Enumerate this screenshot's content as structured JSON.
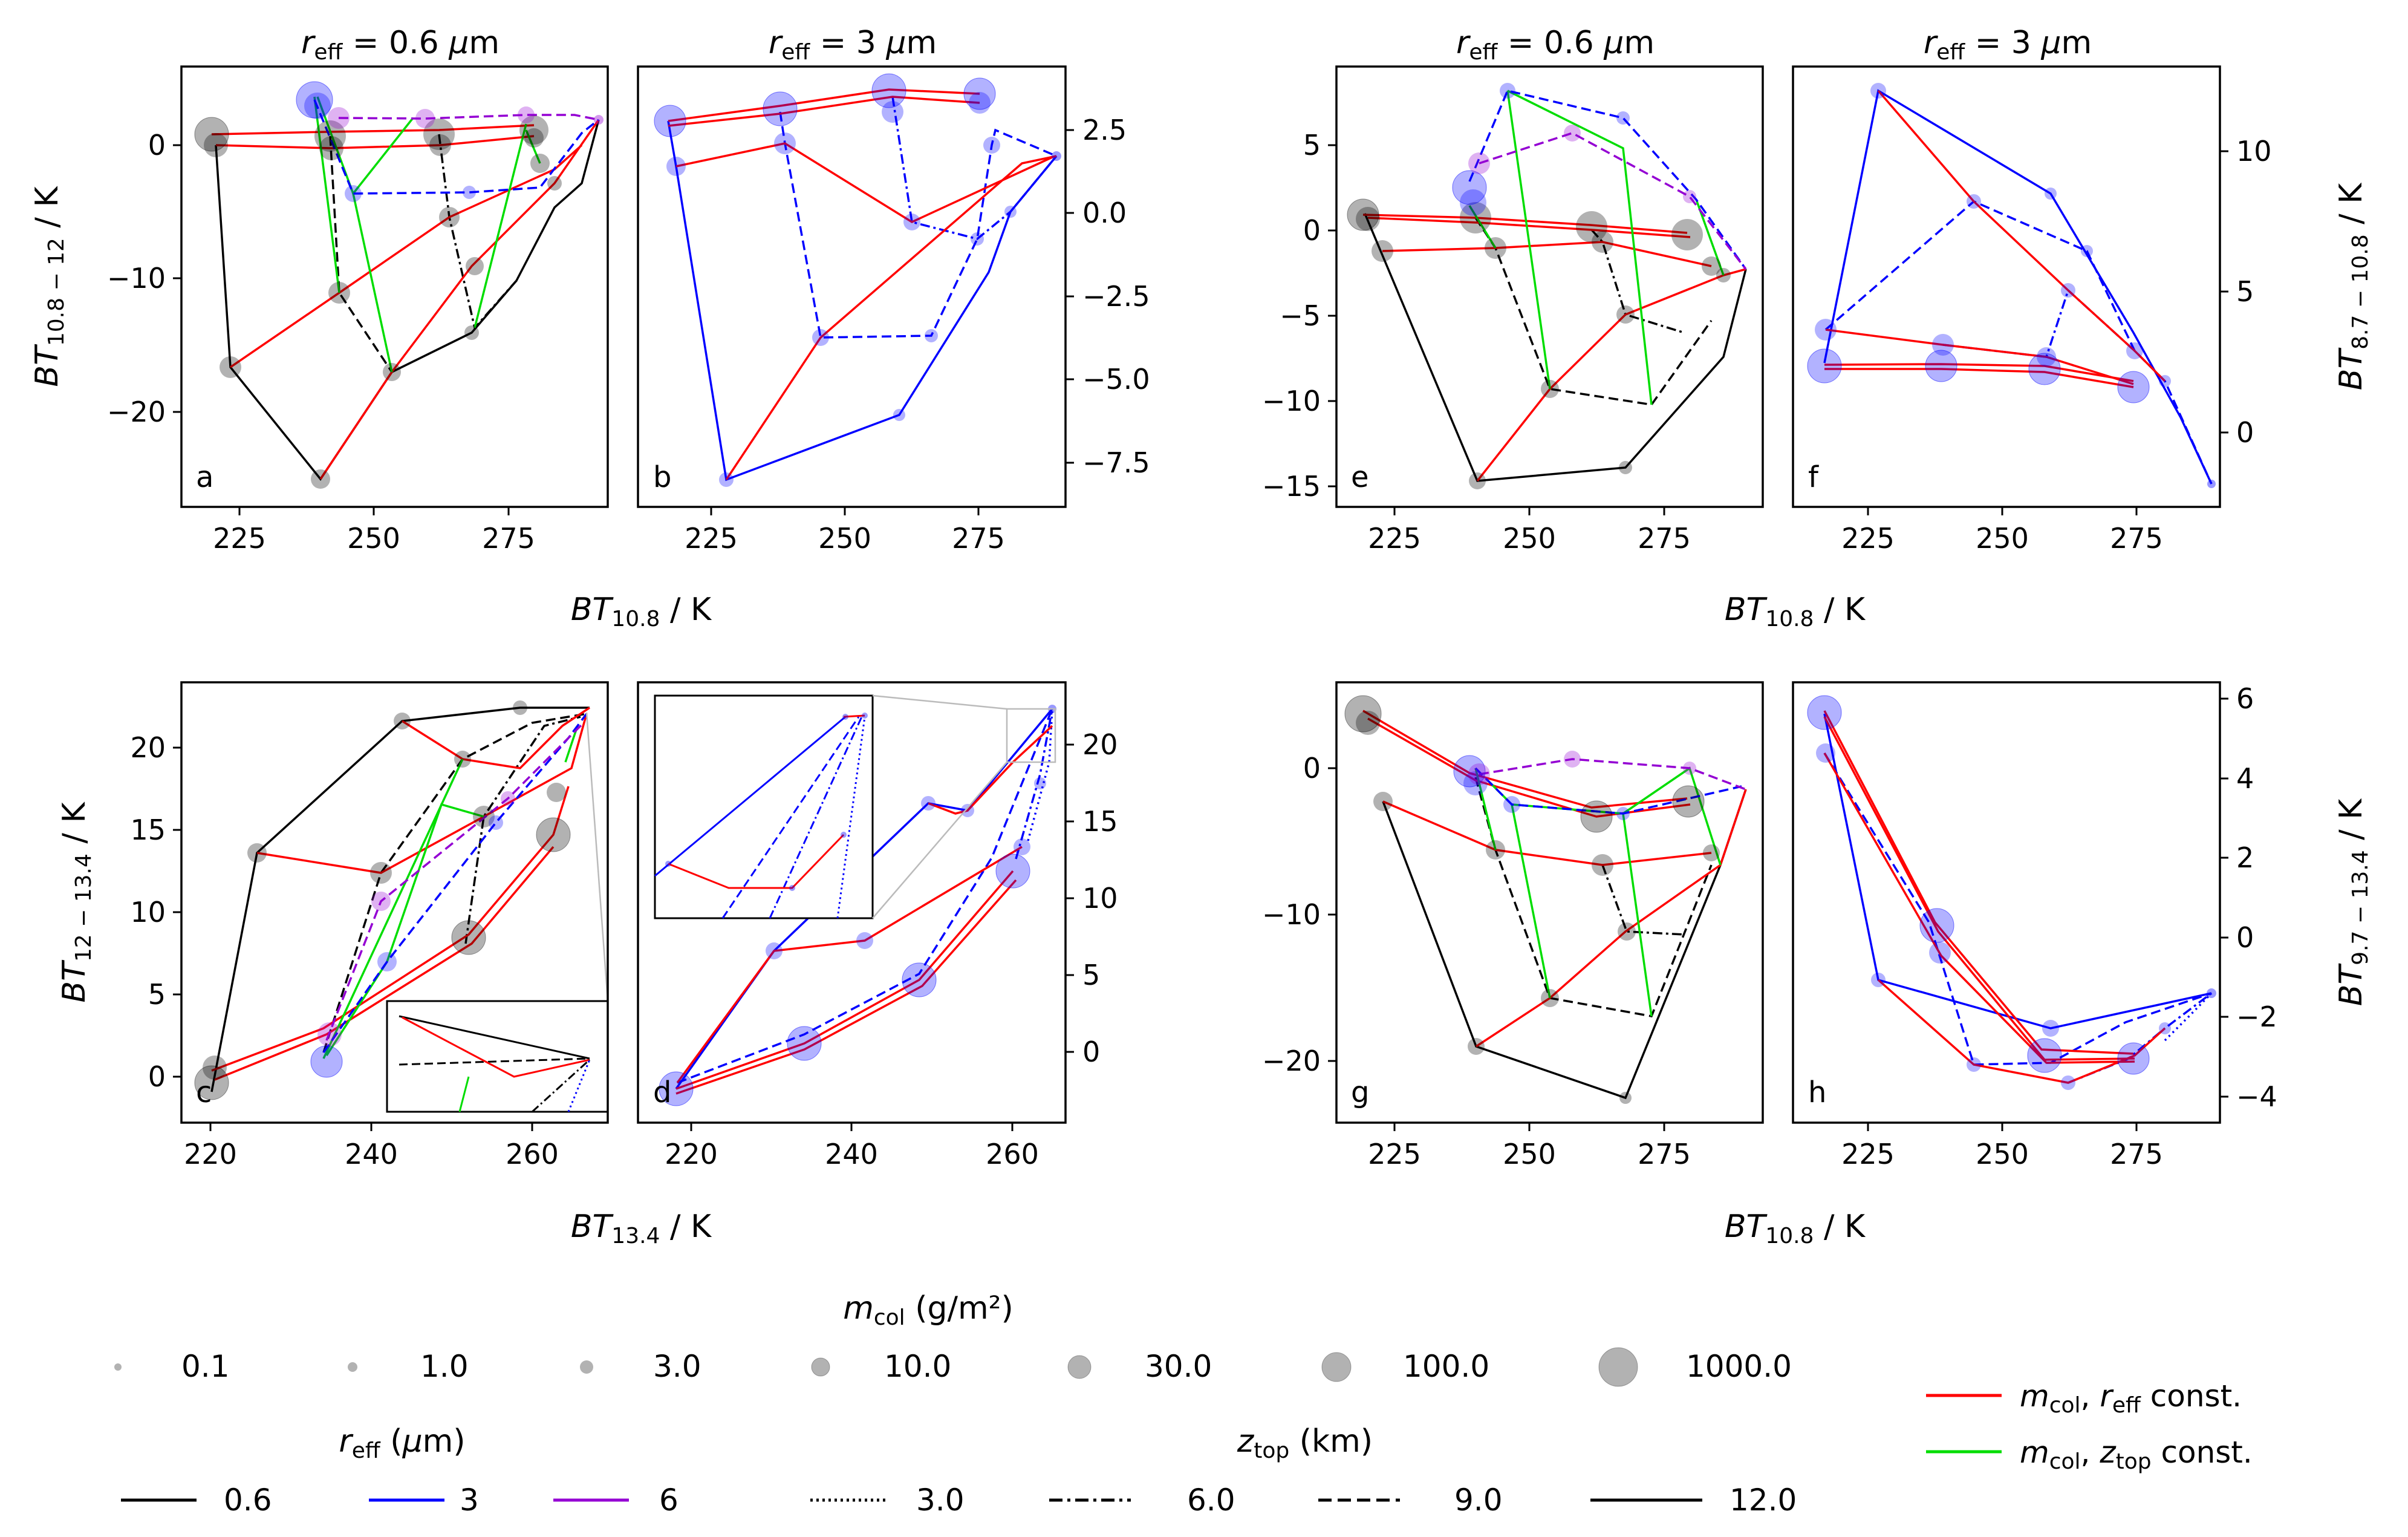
{
  "panels": {
    "a": {
      "label": "a",
      "title": "r_eff = 0.6 μm",
      "xticks": [
        "225",
        "250",
        "275"
      ],
      "yticks": [
        "0",
        "−10",
        "−20"
      ]
    },
    "b": {
      "label": "b",
      "title": "r_eff = 3 μm",
      "xticks": [
        "225",
        "250",
        "275"
      ],
      "yticks": [
        "2.5",
        "0.0",
        "−2.5",
        "−5.0",
        "−7.5"
      ]
    },
    "c": {
      "label": "c",
      "xticks": [
        "220",
        "240",
        "260"
      ],
      "yticks": [
        "0",
        "5",
        "10",
        "15",
        "20"
      ]
    },
    "d": {
      "label": "d",
      "xticks": [
        "220",
        "240",
        "260"
      ],
      "yticks": [
        "0",
        "5",
        "10",
        "15",
        "20"
      ]
    },
    "e": {
      "label": "e",
      "title": "r_eff = 0.6 μm",
      "xticks": [
        "225",
        "250",
        "275"
      ],
      "yticks": [
        "5",
        "0",
        "−5",
        "−10",
        "−15"
      ]
    },
    "f": {
      "label": "f",
      "title": "r_eff = 3 μm",
      "xticks": [
        "225",
        "250",
        "275"
      ],
      "yticks": [
        "10",
        "5",
        "0"
      ]
    },
    "g": {
      "label": "g",
      "xticks": [
        "225",
        "250",
        "275"
      ],
      "yticks": [
        "0",
        "−10",
        "−20"
      ]
    },
    "h": {
      "label": "h",
      "xticks": [
        "225",
        "250",
        "275"
      ],
      "yticks": [
        "6",
        "4",
        "2",
        "0",
        "−2",
        "−4"
      ]
    }
  },
  "axis_labels": {
    "x_top_left": "BT_10.8 / K",
    "x_top_right": "BT_10.8 / K",
    "x_bottom_left": "BT_13.4 / K",
    "x_bottom_right": "BT_10.8 / K",
    "y_a": "BT_10.8 − 12 / K",
    "y_c": "BT_12 − 13.4 / K",
    "y_f": "BT_8.7 − 10.8 / K",
    "y_h": "BT_9.7 − 13.4 / K"
  },
  "legend": {
    "mcol_title": "m_col (g/m²)",
    "mcol_sizes": [
      "0.1",
      "1.0",
      "3.0",
      "10.0",
      "30.0",
      "100.0",
      "1000.0"
    ],
    "reff_title": "r_eff (μm)",
    "reff_entries": [
      {
        "label": "0.6",
        "color": "#000000"
      },
      {
        "label": "3",
        "color": "#0000ff"
      },
      {
        "label": "6",
        "color": "#9400d3"
      }
    ],
    "ztop_title": "z_top (km)",
    "ztop_entries": [
      {
        "label": "3.0",
        "style": "dotted"
      },
      {
        "label": "6.0",
        "style": "dashdot"
      },
      {
        "label": "9.0",
        "style": "dashed"
      },
      {
        "label": "12.0",
        "style": "solid"
      }
    ],
    "const_entries": [
      {
        "label": "m_col, r_eff const.",
        "color": "#ff0000"
      },
      {
        "label": "m_col, z_top const.",
        "color": "#00dd00"
      }
    ]
  },
  "colors": {
    "reff_0.6": "#000000",
    "reff_3": "#0000ff",
    "reff_6": "#9400d3",
    "const_reff": "#ff0000",
    "const_ztop": "#00dd00"
  },
  "chart_data": [
    {
      "panel": "a",
      "type": "scatter",
      "xlim": [
        212,
        293
      ],
      "ylim": [
        -26.5,
        6
      ],
      "xlabel": "BT_10.8 / K",
      "ylabel": "BT_10.8 − 12 / K",
      "series": [
        {
          "name": "0.6",
          "color": "#000000",
          "x": [
            239,
            253,
            268,
            277,
            282,
            286,
            289,
            290
          ],
          "y": [
            -25,
            -17,
            -14,
            -10.5,
            -7,
            -4,
            -1.5,
            1.5
          ]
        },
        {
          "name": "3",
          "color": "#0000ff",
          "x": [
            240,
            244,
            266,
            283,
            287,
            290
          ],
          "y": [
            2.5,
            -3.8,
            -3.7,
            -3.6,
            0,
            1.5
          ]
        },
        {
          "name": "6",
          "color": "#9400d3",
          "x": [
            243,
            259,
            278,
            285,
            290
          ],
          "y": [
            1.7,
            1.7,
            1.9,
            2,
            1.7
          ]
        }
      ]
    },
    {
      "panel": "b",
      "type": "scatter",
      "xlim": [
        214,
        293
      ],
      "ylim": [
        -8.8,
        4.2
      ],
      "xlabel": "BT_10.8 / K",
      "ylabel": "",
      "series": [
        {
          "name": "3",
          "color": "#0000ff",
          "x": [
            217,
            229,
            260,
            277,
            282,
            288,
            290
          ],
          "y": [
            2.8,
            -8.1,
            -6,
            -3.5,
            -0.5,
            1.2,
            1.8
          ]
        },
        {
          "name": "3 (m_col, r_eff const.)",
          "color": "#ff0000",
          "x": [
            217,
            238,
            260,
            276
          ],
          "y": [
            2.5,
            3.0,
            3.4,
            3.3
          ]
        }
      ]
    },
    {
      "panel": "c",
      "type": "scatter",
      "xlim": [
        218,
        270
      ],
      "ylim": [
        -3,
        24
      ],
      "xlabel": "BT_13.4 / K",
      "ylabel": "BT_12 − 13.4 / K",
      "series": [
        {
          "name": "0.6",
          "color": "#000000",
          "x": [
            220,
            226,
            244,
            258,
            266
          ],
          "y": [
            0,
            13.6,
            21.5,
            22.3,
            22.3
          ]
        },
        {
          "name": "3",
          "color": "#0000ff",
          "x": [
            234,
            242,
            252,
            261,
            266
          ],
          "y": [
            1,
            7,
            13.5,
            19,
            22
          ]
        },
        {
          "name": "6",
          "color": "#9400d3",
          "x": [
            236,
            247,
            258,
            265
          ],
          "y": [
            2.2,
            10.6,
            16,
            21
          ]
        }
      ]
    },
    {
      "panel": "d",
      "type": "scatter",
      "xlim": [
        215,
        268
      ],
      "ylim": [
        -3.5,
        23
      ],
      "xlabel": "BT_13.4 / K",
      "ylabel": "",
      "series": [
        {
          "name": "3",
          "color": "#0000ff",
          "x": [
            218,
            230,
            250,
            257,
            261,
            266
          ],
          "y": [
            -2,
            7.5,
            16.5,
            15.5,
            20,
            22
          ]
        },
        {
          "name": "3 (m_col, r_eff const.)",
          "color": "#ff0000",
          "x": [
            218,
            234,
            249,
            261
          ],
          "y": [
            -2.2,
            2.5,
            6.5,
            12.8
          ]
        }
      ]
    },
    {
      "panel": "e",
      "type": "scatter",
      "xlim": [
        215,
        295
      ],
      "ylim": [
        -16,
        9
      ],
      "xlabel": "BT_10.8 / K",
      "ylabel": "",
      "series": [
        {
          "name": "0.6",
          "color": "#000000",
          "x": [
            239,
            267,
            280,
            286,
            290
          ],
          "y": [
            -14.6,
            -14,
            -9,
            -5,
            -2.5
          ]
        },
        {
          "name": "3",
          "color": "#0000ff",
          "x": [
            246,
            266,
            285,
            290
          ],
          "y": [
            8,
            6.4,
            1,
            -2.5
          ]
        },
        {
          "name": "6",
          "color": "#9400d3",
          "x": [
            243,
            259,
            277,
            290
          ],
          "y": [
            4,
            5.5,
            2,
            -2.5
          ]
        }
      ]
    },
    {
      "panel": "f",
      "type": "scatter",
      "xlim": [
        213,
        293
      ],
      "ylim": [
        -2.5,
        13.2
      ],
      "xlabel": "BT_10.8 / K",
      "ylabel": "BT_8.7 − 10.8 / K",
      "series": [
        {
          "name": "3",
          "color": "#0000ff",
          "x": [
            217,
            229,
            261,
            277,
            286,
            290
          ],
          "y": [
            2.2,
            12,
            8.5,
            4,
            0.5,
            -1.8
          ]
        },
        {
          "name": "3 (m_col, r_eff const.)",
          "color": "#ff0000",
          "x": [
            217,
            238,
            260,
            276
          ],
          "y": [
            2.2,
            2.2,
            2.1,
            1.6
          ]
        }
      ]
    },
    {
      "panel": "g",
      "type": "scatter",
      "xlim": [
        215,
        293
      ],
      "ylim": [
        -24.8,
        5.2
      ],
      "xlabel": "BT_10.8 / K",
      "ylabel": "",
      "series": [
        {
          "name": "0.6",
          "color": "#000000",
          "x": [
            220,
            239,
            267,
            284,
            290
          ],
          "y": [
            3.6,
            -19.2,
            -22.6,
            -13,
            -1.8
          ]
        },
        {
          "name": "3",
          "color": "#0000ff",
          "x": [
            239,
            265,
            287,
            290
          ],
          "y": [
            -0.5,
            -3.2,
            -1.5,
            -1.5
          ]
        },
        {
          "name": "6",
          "color": "#9400d3",
          "x": [
            243,
            259,
            278,
            290
          ],
          "y": [
            -0.5,
            0.5,
            -0.2,
            -1.5
          ]
        }
      ]
    },
    {
      "panel": "h",
      "type": "scatter",
      "xlim": [
        212,
        293
      ],
      "ylim": [
        -4.8,
        6.3
      ],
      "xlabel": "BT_10.8 / K",
      "ylabel": "BT_9.7 − 13.4 / K",
      "series": [
        {
          "name": "3",
          "color": "#0000ff",
          "x": [
            217,
            229,
            262,
            290
          ],
          "y": [
            5.5,
            -1.5,
            -2.5,
            -1.5
          ]
        },
        {
          "name": "3 (m_col, r_eff const.)",
          "color": "#ff0000",
          "x": [
            217,
            238,
            259,
            276
          ],
          "y": [
            5.3,
            0.2,
            -3.3,
            -3.5
          ]
        }
      ]
    }
  ]
}
